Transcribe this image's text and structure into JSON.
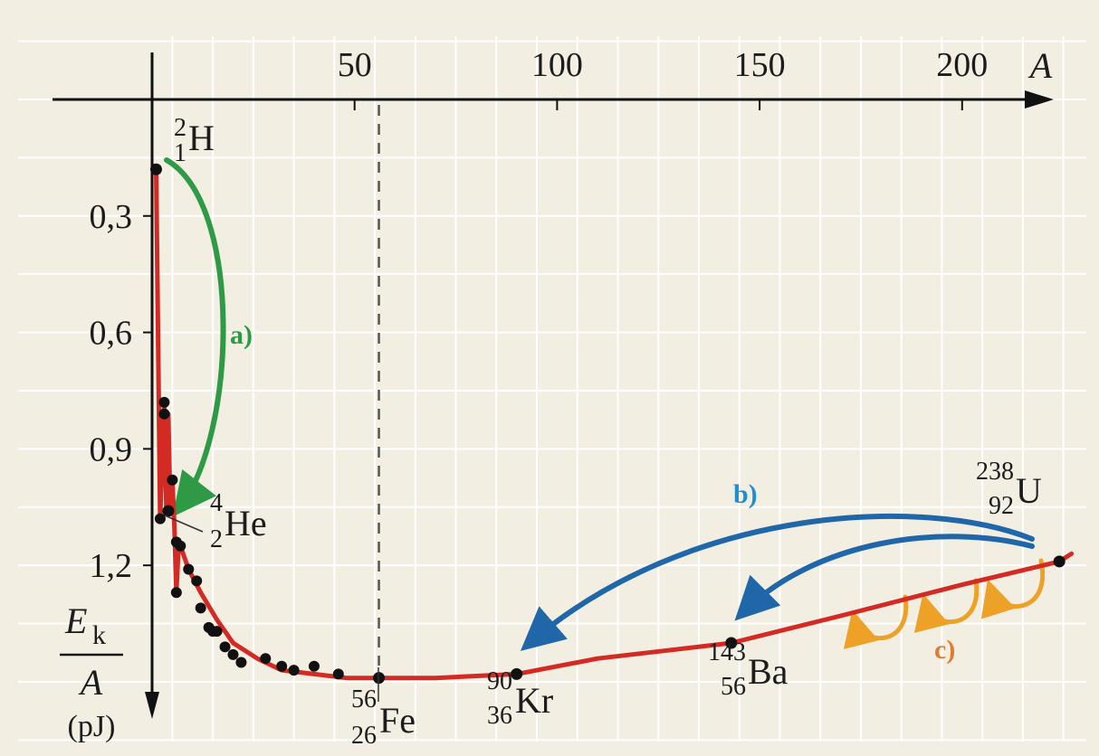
{
  "chart_data": {
    "type": "scatter",
    "title": "",
    "xlabel": "A",
    "ylabel": {
      "numerator": "E",
      "subscript": "k",
      "denominator": "A",
      "unit": "(pJ)"
    },
    "xlim": [
      0,
      225
    ],
    "ylim": [
      0,
      1.41
    ],
    "y_inverted": true,
    "x_ticks": [
      {
        "value": 50,
        "label": "50"
      },
      {
        "value": 100,
        "label": "100"
      },
      {
        "value": 150,
        "label": "150"
      },
      {
        "value": 200,
        "label": "200"
      }
    ],
    "y_ticks": [
      {
        "value": 0.3,
        "label": "0,3"
      },
      {
        "value": 0.6,
        "label": "0,6"
      },
      {
        "value": 0.9,
        "label": "0,9"
      },
      {
        "value": 1.2,
        "label": "1,2"
      }
    ],
    "grid": true,
    "colors": {
      "background": "#f3eee2",
      "grid": "#ffffff",
      "curve": "#d42a24",
      "fusion_arrow": "#2e9a45",
      "fission_arrow": "#1f67a8",
      "decay_arrow": "#eda127",
      "axis": "#111111",
      "reference_line": "#555555"
    },
    "series": [
      {
        "name": "",
        "x": [
          1,
          2,
          3,
          3,
          4,
          5,
          6,
          6,
          7,
          9,
          11,
          12,
          14,
          15,
          16,
          18,
          20,
          22,
          28,
          32,
          35,
          40,
          46,
          56
        ],
        "y": [
          0.18,
          1.08,
          0.78,
          0.81,
          1.06,
          0.98,
          1.14,
          1.27,
          1.15,
          1.21,
          1.24,
          1.31,
          1.36,
          1.37,
          1.37,
          1.41,
          1.43,
          1.45,
          1.44,
          1.46,
          1.47,
          1.46,
          1.48,
          1.49
        ]
      }
    ],
    "curve": {
      "x": [
        1,
        2,
        3,
        3.5,
        4,
        4.5,
        5,
        5.5,
        6,
        6.5,
        7,
        9,
        12,
        16,
        20,
        26,
        32,
        40,
        48,
        56,
        70,
        90,
        110,
        143,
        170,
        200,
        224,
        227
      ],
      "y": [
        0.18,
        1.08,
        0.78,
        1.05,
        0.81,
        1.05,
        0.98,
        1.1,
        1.27,
        1.16,
        1.15,
        1.21,
        1.27,
        1.34,
        1.4,
        1.44,
        1.47,
        1.48,
        1.49,
        1.49,
        1.49,
        1.48,
        1.44,
        1.4,
        1.33,
        1.25,
        1.19,
        1.17
      ]
    },
    "nuclides": [
      {
        "key": "H",
        "mass": "2",
        "atomic": "1",
        "symbol": "H",
        "x": 1,
        "y": 0.18
      },
      {
        "key": "He",
        "mass": "4",
        "atomic": "2",
        "symbol": "He",
        "x": 4,
        "y": 1.06
      },
      {
        "key": "Fe",
        "mass": "56",
        "atomic": "26",
        "symbol": "Fe",
        "x": 56,
        "y": 1.49
      },
      {
        "key": "Kr",
        "mass": "90",
        "atomic": "36",
        "symbol": "Kr",
        "x": 90,
        "y": 1.48
      },
      {
        "key": "Ba",
        "mass": "143",
        "atomic": "56",
        "symbol": "Ba",
        "x": 143,
        "y": 1.4
      },
      {
        "key": "U",
        "mass": "238",
        "atomic": "92",
        "symbol": "U",
        "x": 224,
        "y": 1.19
      }
    ],
    "reference_line": {
      "x": 56
    },
    "annotations": [
      {
        "label": "a)",
        "meaning": "fusion"
      },
      {
        "label": "b)",
        "meaning": "fission"
      },
      {
        "label": "c)",
        "meaning": "decay"
      }
    ]
  }
}
